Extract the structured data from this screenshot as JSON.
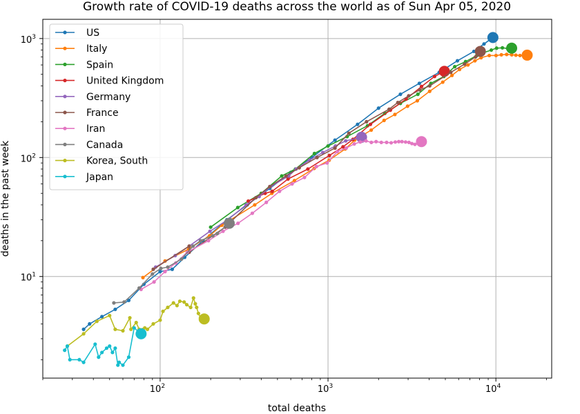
{
  "chart_data": {
    "type": "line",
    "title": "Growth rate of COVID-19 deaths across the world as of Sun Apr 05, 2020",
    "xlabel": "total deaths",
    "ylabel": "deaths in the past week",
    "xscale": "log",
    "yscale": "log",
    "xlim": [
      20,
      21500
    ],
    "ylim": [
      1.4,
      1450
    ],
    "xticks": [
      {
        "base": "10",
        "exp": "2",
        "value": 100
      },
      {
        "base": "10",
        "exp": "3",
        "value": 1000
      },
      {
        "base": "10",
        "exp": "4",
        "value": 10000
      }
    ],
    "yticks": [
      {
        "base": "10",
        "exp": "1",
        "value": 10
      },
      {
        "base": "10",
        "exp": "2",
        "value": 100
      },
      {
        "base": "10",
        "exp": "3",
        "value": 1000
      }
    ],
    "grid": true,
    "legend_position": "top-left",
    "series": [
      {
        "name": "US",
        "color": "#1f77b4",
        "points": [
          [
            35,
            3.6
          ],
          [
            38,
            4.0
          ],
          [
            45,
            4.6
          ],
          [
            54,
            5.3
          ],
          [
            65,
            6.3
          ],
          [
            80,
            8.6
          ],
          [
            100,
            11
          ],
          [
            118,
            11.5
          ],
          [
            140,
            14.5
          ],
          [
            180,
            20
          ],
          [
            250,
            30
          ],
          [
            330,
            40
          ],
          [
            450,
            55
          ],
          [
            600,
            75
          ],
          [
            800,
            100
          ],
          [
            1100,
            140
          ],
          [
            1500,
            190
          ],
          [
            2000,
            260
          ],
          [
            2700,
            340
          ],
          [
            3500,
            420
          ],
          [
            4600,
            520
          ],
          [
            5900,
            650
          ],
          [
            7400,
            780
          ],
          [
            8500,
            900
          ],
          [
            9600,
            1020
          ]
        ]
      },
      {
        "name": "Italy",
        "color": "#ff7f0e",
        "points": [
          [
            79,
            9.8
          ],
          [
            107,
            13.5
          ],
          [
            148,
            17
          ],
          [
            197,
            22
          ],
          [
            233,
            27
          ],
          [
            366,
            40
          ],
          [
            463,
            50
          ],
          [
            631,
            64
          ],
          [
            827,
            81
          ],
          [
            1016,
            95
          ],
          [
            1266,
            118
          ],
          [
            1441,
            140
          ],
          [
            1809,
            170
          ],
          [
            2158,
            205
          ],
          [
            2503,
            230
          ],
          [
            2978,
            270
          ],
          [
            3405,
            300
          ],
          [
            4032,
            360
          ],
          [
            4825,
            430
          ],
          [
            5476,
            490
          ],
          [
            6077,
            550
          ],
          [
            6820,
            600
          ],
          [
            7503,
            650
          ],
          [
            8165,
            690
          ],
          [
            9134,
            720
          ],
          [
            10023,
            720
          ],
          [
            10779,
            730
          ],
          [
            11591,
            735
          ],
          [
            12428,
            730
          ],
          [
            13155,
            725
          ],
          [
            13915,
            720
          ],
          [
            14681,
            715
          ],
          [
            15362,
            725
          ]
        ]
      },
      {
        "name": "Spain",
        "color": "#2ca02c",
        "points": [
          [
            200,
            26
          ],
          [
            290,
            38
          ],
          [
            400,
            50
          ],
          [
            530,
            70
          ],
          [
            640,
            80
          ],
          [
            830,
            108
          ],
          [
            1000,
            125
          ],
          [
            1300,
            150
          ],
          [
            1720,
            185
          ],
          [
            2180,
            235
          ],
          [
            2700,
            285
          ],
          [
            3430,
            340
          ],
          [
            4100,
            420
          ],
          [
            4900,
            480
          ],
          [
            5690,
            580
          ],
          [
            6600,
            640
          ],
          [
            7700,
            720
          ],
          [
            8460,
            760
          ],
          [
            9390,
            800
          ],
          [
            10096,
            830
          ],
          [
            10935,
            835
          ],
          [
            11744,
            825
          ],
          [
            12418,
            830
          ]
        ]
      },
      {
        "name": "United Kingdom",
        "color": "#d62728",
        "points": [
          [
            335,
            43
          ],
          [
            422,
            50
          ],
          [
            465,
            52
          ],
          [
            578,
            66
          ],
          [
            759,
            80
          ],
          [
            1019,
            104
          ],
          [
            1228,
            123
          ],
          [
            1408,
            142
          ],
          [
            1789,
            190
          ],
          [
            2352,
            250
          ],
          [
            2921,
            310
          ],
          [
            3605,
            395
          ],
          [
            4313,
            480
          ],
          [
            4934,
            530
          ]
        ]
      },
      {
        "name": "Germany",
        "color": "#9467bd",
        "points": [
          [
            94,
            12
          ],
          [
            123,
            15
          ],
          [
            149,
            18
          ],
          [
            198,
            24
          ],
          [
            253,
            30
          ],
          [
            325,
            40
          ],
          [
            389,
            47
          ],
          [
            455,
            57
          ],
          [
            583,
            70
          ],
          [
            645,
            80
          ],
          [
            775,
            95
          ],
          [
            931,
            110
          ],
          [
            1107,
            125
          ],
          [
            1275,
            138
          ],
          [
            1584,
            148
          ]
        ]
      },
      {
        "name": "France",
        "color": "#8c564b",
        "points": [
          [
            91,
            11.5
          ],
          [
            149,
            18
          ],
          [
            149,
            16
          ],
          [
            244,
            26
          ],
          [
            372,
            46
          ],
          [
            450,
            57
          ],
          [
            562,
            70
          ],
          [
            674,
            82
          ],
          [
            860,
            100
          ],
          [
            1100,
            120
          ],
          [
            1331,
            160
          ],
          [
            1696,
            200
          ],
          [
            2314,
            255
          ],
          [
            2606,
            290
          ],
          [
            3024,
            330
          ],
          [
            3523,
            370
          ],
          [
            4032,
            400
          ],
          [
            5387,
            520
          ],
          [
            6507,
            610
          ],
          [
            7560,
            700
          ],
          [
            8078,
            780
          ]
        ]
      },
      {
        "name": "Iran",
        "color": "#e377c2",
        "points": [
          [
            77,
            7.8
          ],
          [
            92,
            9
          ],
          [
            107,
            11
          ],
          [
            124,
            13
          ],
          [
            145,
            16
          ],
          [
            194,
            20
          ],
          [
            237,
            24
          ],
          [
            291,
            28
          ],
          [
            354,
            34
          ],
          [
            429,
            42
          ],
          [
            514,
            52
          ],
          [
            611,
            60
          ],
          [
            724,
            68
          ],
          [
            853,
            84
          ],
          [
            988,
            90
          ],
          [
            1135,
            112
          ],
          [
            1284,
            120
          ],
          [
            1433,
            130
          ],
          [
            1556,
            135
          ],
          [
            1685,
            138
          ],
          [
            1812,
            134
          ],
          [
            1934,
            136
          ],
          [
            2077,
            134
          ],
          [
            2234,
            134
          ],
          [
            2378,
            133
          ],
          [
            2517,
            135
          ],
          [
            2640,
            136
          ],
          [
            2757,
            136
          ],
          [
            2898,
            135
          ],
          [
            3036,
            134
          ],
          [
            3160,
            131
          ],
          [
            3294,
            129
          ],
          [
            3452,
            133
          ],
          [
            3603,
            136
          ]
        ]
      },
      {
        "name": "Canada",
        "color": "#7f7f7f",
        "points": [
          [
            53,
            6
          ],
          [
            61,
            6.1
          ],
          [
            75,
            8
          ],
          [
            90,
            10.5
          ],
          [
            101,
            11.7
          ],
          [
            111,
            12
          ],
          [
            134,
            14
          ],
          [
            157,
            18
          ],
          [
            174,
            20
          ],
          [
            206,
            22
          ],
          [
            219,
            23
          ],
          [
            258,
            28
          ]
        ]
      },
      {
        "name": "Korea, South",
        "color": "#bcbd22",
        "points": [
          [
            28,
            2.6
          ],
          [
            35,
            3.3
          ],
          [
            42,
            4.2
          ],
          [
            50,
            4.7
          ],
          [
            54,
            3.6
          ],
          [
            60,
            3.5
          ],
          [
            66,
            4.5
          ],
          [
            67,
            3.6
          ],
          [
            72,
            4.1
          ],
          [
            75,
            3.6
          ],
          [
            81,
            3.7
          ],
          [
            84,
            3.6
          ],
          [
            91,
            4.0
          ],
          [
            100,
            4.3
          ],
          [
            104,
            5.1
          ],
          [
            111,
            5.5
          ],
          [
            120,
            6.0
          ],
          [
            126,
            5.7
          ],
          [
            131,
            6.2
          ],
          [
            139,
            6.1
          ],
          [
            144,
            5.8
          ],
          [
            152,
            5.5
          ],
          [
            158,
            6.6
          ],
          [
            162,
            5.9
          ],
          [
            165,
            5.5
          ],
          [
            169,
            4.9
          ],
          [
            174,
            4.5
          ],
          [
            183,
            4.4
          ]
        ]
      },
      {
        "name": "Japan",
        "color": "#17becf",
        "points": [
          [
            27,
            2.4
          ],
          [
            28,
            2.6
          ],
          [
            29,
            2.0
          ],
          [
            33,
            2.0
          ],
          [
            35,
            1.9
          ],
          [
            41,
            2.7
          ],
          [
            43,
            2.1
          ],
          [
            45,
            2.3
          ],
          [
            48,
            2.5
          ],
          [
            50,
            2.6
          ],
          [
            52,
            2.3
          ],
          [
            54,
            2.5
          ],
          [
            56,
            1.8
          ],
          [
            57,
            1.9
          ],
          [
            60,
            1.8
          ],
          [
            65,
            2.1
          ],
          [
            70,
            3.7
          ],
          [
            77,
            3.3
          ]
        ]
      }
    ]
  }
}
